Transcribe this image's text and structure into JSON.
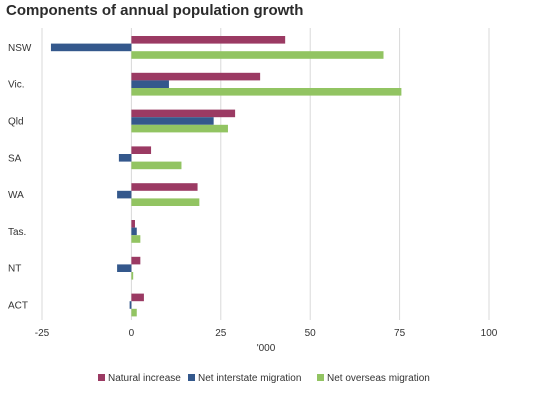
{
  "chart_data": {
    "type": "bar",
    "orientation": "horizontal",
    "title": "Components of annual population growth",
    "xlabel": "'000",
    "ylabel": "",
    "categories": [
      "NSW",
      "Vic.",
      "Qld",
      "SA",
      "WA",
      "Tas.",
      "NT",
      "ACT"
    ],
    "series": [
      {
        "name": "Natural increase",
        "color": "#9b3a63",
        "values": [
          43,
          36,
          29,
          5.5,
          18.5,
          1,
          2.5,
          3.5
        ]
      },
      {
        "name": "Net interstate migration",
        "color": "#34588c",
        "values": [
          -22.5,
          10.5,
          23,
          -3.5,
          -4,
          1.5,
          -4,
          -0.5
        ]
      },
      {
        "name": "Net overseas migration",
        "color": "#92c462",
        "values": [
          70.5,
          75.5,
          27,
          14,
          19,
          2.5,
          0.5,
          1.5
        ]
      }
    ],
    "xlim": [
      -25,
      100
    ],
    "xticks": [
      -25,
      0,
      25,
      50,
      75,
      100
    ],
    "grid": "vertical",
    "legend_position": "bottom"
  }
}
